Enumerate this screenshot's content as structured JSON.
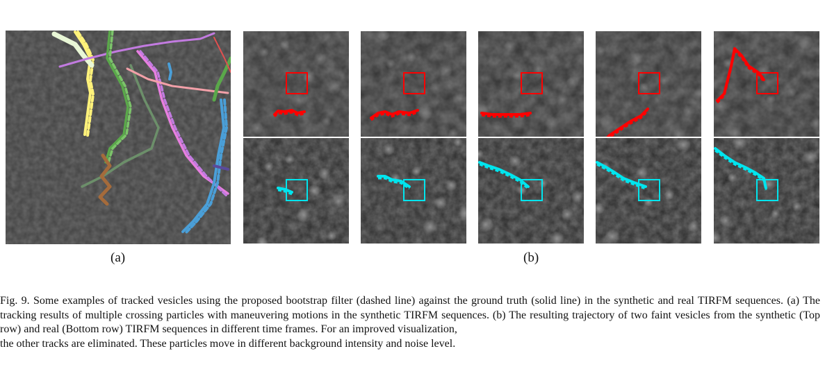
{
  "panel_labels": {
    "a": "(a)",
    "b": "(b)"
  },
  "caption": {
    "line1": "Fig. 9.  Some examples of tracked vesicles using the proposed bootstrap filter (dashed line) against the ground truth (solid line) in the synthetic and real TIRFM sequences. (a) The tracking results of multiple crossing particles with maneuvering motions in the synthetic TIRFM sequences. (b) The resulting trajectory of two faint vesicles from the synthetic (Top row) and real (Bottom row) TIRFM sequences in different time frames. For an improved visualization,",
    "line2": "the other tracks are eliminated. These particles move in different background intensity and noise level."
  },
  "colors": {
    "top_row_track": "#ff0000",
    "bottom_row_track": "#00e5ee",
    "track_colors_a": [
      "#fff27a",
      "#e9f7d6",
      "#7cc46a",
      "#5aa84a",
      "#c27be0",
      "#e87fe0",
      "#f2a0a8",
      "#4a9fd8",
      "#a56b3b",
      "#6c8f6a",
      "#5a4a9a"
    ]
  }
}
